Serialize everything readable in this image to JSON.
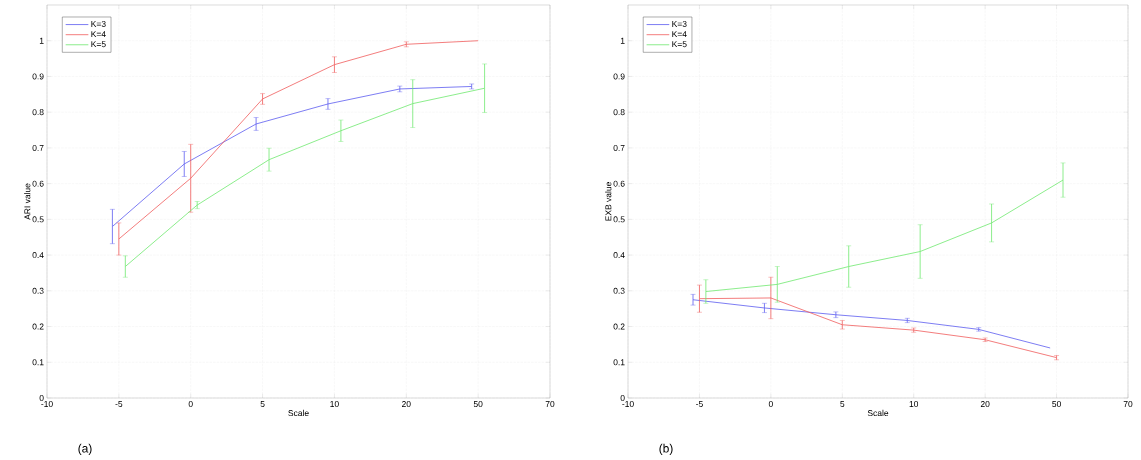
{
  "chart_data": [
    {
      "type": "line",
      "xlabel": "Scale",
      "ylabel": "ARI value",
      "categories": [
        "-10",
        "-5",
        "0",
        "5",
        "10",
        "20",
        "50",
        "70"
      ],
      "ylim": [
        0,
        1.1
      ],
      "yticks": [
        0,
        0.1,
        0.2,
        0.3,
        0.4,
        0.5,
        0.6,
        0.7,
        0.8,
        0.9,
        1
      ],
      "grid": true,
      "legend": "top left",
      "marker": "none",
      "line_style": "solid",
      "annotations": [
        "(a)"
      ],
      "series": [
        {
          "name": "K=3",
          "color": "#5c5cf0",
          "values": [
            null,
            0.48,
            0.655,
            0.767,
            0.823,
            0.865,
            0.872,
            null
          ],
          "errors": [
            null,
            0.048,
            0.035,
            0.018,
            0.015,
            0.008,
            0.007,
            null
          ]
        },
        {
          "name": "K=4",
          "color": "#f05c5c",
          "values": [
            null,
            0.445,
            0.615,
            0.837,
            0.933,
            0.99,
            1.0,
            null
          ],
          "errors": [
            null,
            0.045,
            0.095,
            0.015,
            0.022,
            0.007,
            null,
            null
          ]
        },
        {
          "name": "K=5",
          "color": "#6ee86e",
          "values": [
            null,
            0.368,
            0.54,
            0.667,
            0.748,
            0.824,
            0.867,
            null
          ],
          "errors": [
            null,
            0.03,
            0.01,
            0.032,
            0.03,
            0.067,
            0.068,
            null
          ]
        }
      ]
    },
    {
      "type": "line",
      "xlabel": "Scale",
      "ylabel": "EXB value",
      "categories": [
        "-10",
        "-5",
        "0",
        "5",
        "10",
        "20",
        "50",
        "70"
      ],
      "ylim": [
        0,
        1.1
      ],
      "yticks": [
        0,
        0.1,
        0.2,
        0.3,
        0.4,
        0.5,
        0.6,
        0.7,
        0.8,
        0.9,
        1
      ],
      "grid": true,
      "legend": "top left",
      "marker": "none",
      "line_style": "solid",
      "annotations": [
        "(b)"
      ],
      "series": [
        {
          "name": "K=3",
          "color": "#5c5cf0",
          "values": [
            null,
            0.275,
            0.252,
            0.233,
            0.217,
            0.192,
            0.14,
            null
          ],
          "errors": [
            null,
            0.015,
            0.013,
            0.008,
            0.006,
            0.005,
            null,
            null
          ]
        },
        {
          "name": "K=4",
          "color": "#f05c5c",
          "values": [
            null,
            0.278,
            0.28,
            0.205,
            0.19,
            0.163,
            0.113,
            null
          ],
          "errors": [
            null,
            0.038,
            0.058,
            0.012,
            0.006,
            0.005,
            0.006,
            null
          ]
        },
        {
          "name": "K=5",
          "color": "#6ee86e",
          "values": [
            null,
            0.298,
            0.318,
            0.368,
            0.41,
            0.49,
            0.61,
            null
          ],
          "errors": [
            null,
            0.033,
            0.05,
            0.058,
            0.075,
            0.053,
            0.048,
            null
          ]
        }
      ]
    }
  ]
}
